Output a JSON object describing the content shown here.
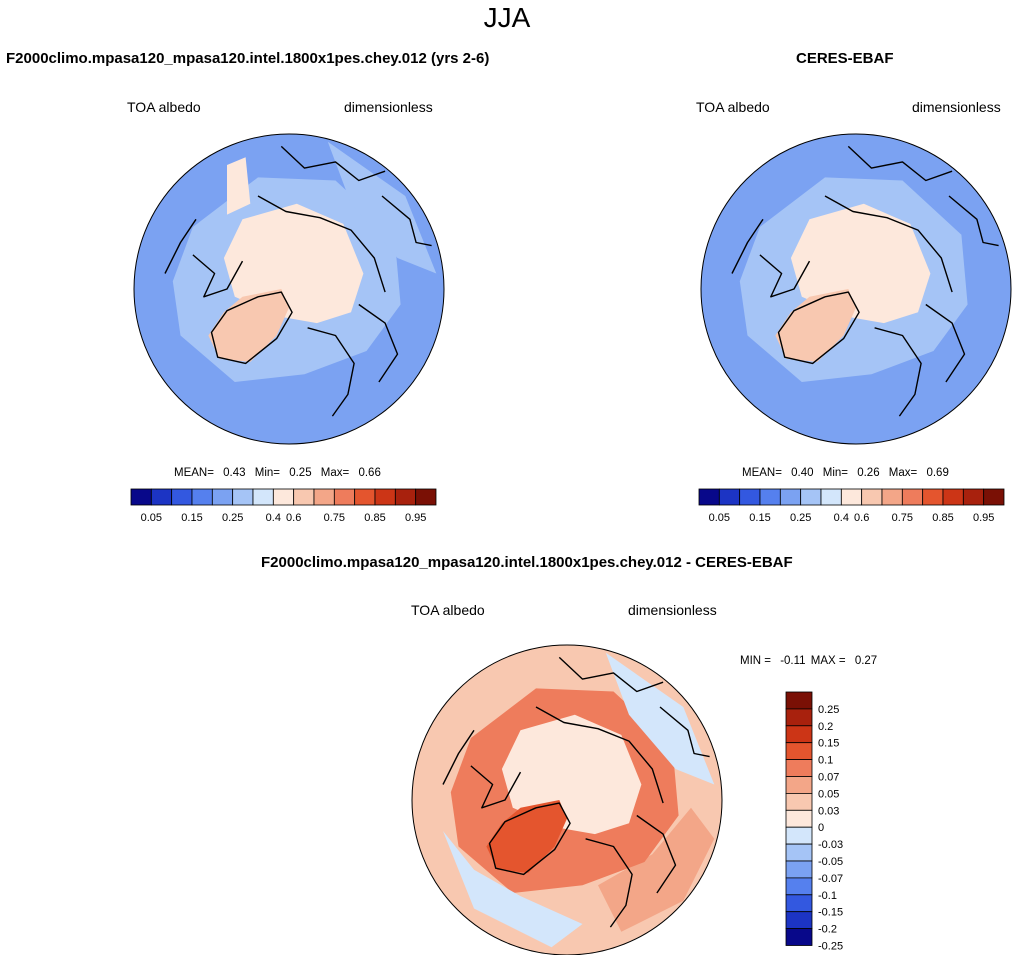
{
  "figure": {
    "season": "JJA"
  },
  "panels": [
    {
      "title": "F2000climo.mpasa120_mpasa120.intel.1800x1pes.chey.012 (yrs 2-6)",
      "left_label": "TOA albedo",
      "right_label": "dimensionless",
      "stats": {
        "mean_label": "MEAN=",
        "mean": "0.43",
        "min_label": "Min=",
        "min": "0.25",
        "max_label": "Max=",
        "max": "0.66"
      }
    },
    {
      "title": "CERES-EBAF",
      "left_label": "TOA albedo",
      "right_label": "dimensionless",
      "stats": {
        "mean_label": "MEAN=",
        "mean": "0.40",
        "min_label": "Min=",
        "min": "0.26",
        "max_label": "Max=",
        "max": "0.69"
      }
    },
    {
      "title": "F2000climo.mpasa120_mpasa120.intel.1800x1pes.chey.012 - CERES-EBAF",
      "left_label": "TOA albedo",
      "right_label": "dimensionless",
      "stats": {
        "min_label": "MIN =",
        "min": "-0.11",
        "max_label": "MAX =",
        "max": "0.27"
      }
    }
  ],
  "chart_data": [
    {
      "type": "heatmap",
      "projection": "north-polar-stereographic",
      "title": "F2000climo.mpasa120_mpasa120.intel.1800x1pes.chey.012 (yrs 2-6)",
      "variable": "TOA albedo",
      "units": "dimensionless",
      "mean": 0.43,
      "min": 0.25,
      "max": 0.66,
      "colorbar": {
        "orientation": "horizontal",
        "levels": [
          0.05,
          0.1,
          0.15,
          0.2,
          0.25,
          0.3,
          0.4,
          0.5,
          0.6,
          0.7,
          0.75,
          0.8,
          0.85,
          0.9,
          0.95
        ],
        "tick_labels": [
          "0.05",
          "0.15",
          "0.25",
          "0.4",
          "0.6",
          "0.75",
          "0.85",
          "0.95"
        ],
        "colors": [
          "#08088a",
          "#1c34c4",
          "#3358e0",
          "#5580ee",
          "#7ba2f2",
          "#a5c4f6",
          "#d3e6fb",
          "#fde8dc",
          "#f8c8b0",
          "#f3a688",
          "#ee7c5c",
          "#e4552e",
          "#cc3516",
          "#a8210d",
          "#7a1005"
        ]
      }
    },
    {
      "type": "heatmap",
      "projection": "north-polar-stereographic",
      "title": "CERES-EBAF",
      "variable": "TOA albedo",
      "units": "dimensionless",
      "mean": 0.4,
      "min": 0.26,
      "max": 0.69,
      "colorbar": {
        "orientation": "horizontal",
        "levels": [
          0.05,
          0.1,
          0.15,
          0.2,
          0.25,
          0.3,
          0.4,
          0.5,
          0.6,
          0.7,
          0.75,
          0.8,
          0.85,
          0.9,
          0.95
        ],
        "tick_labels": [
          "0.05",
          "0.15",
          "0.25",
          "0.4",
          "0.6",
          "0.75",
          "0.85",
          "0.95"
        ],
        "colors": [
          "#08088a",
          "#1c34c4",
          "#3358e0",
          "#5580ee",
          "#7ba2f2",
          "#a5c4f6",
          "#d3e6fb",
          "#fde8dc",
          "#f8c8b0",
          "#f3a688",
          "#ee7c5c",
          "#e4552e",
          "#cc3516",
          "#a8210d",
          "#7a1005"
        ]
      }
    },
    {
      "type": "heatmap",
      "projection": "north-polar-stereographic",
      "title": "F2000climo.mpasa120_mpasa120.intel.1800x1pes.chey.012 - CERES-EBAF",
      "variable": "TOA albedo",
      "units": "dimensionless",
      "min": -0.11,
      "max": 0.27,
      "colorbar": {
        "orientation": "vertical",
        "levels": [
          0.25,
          0.2,
          0.15,
          0.1,
          0.07,
          0.05,
          0.03,
          0,
          -0.03,
          -0.05,
          -0.07,
          -0.1,
          -0.15,
          -0.2,
          -0.25
        ],
        "tick_labels": [
          "0.25",
          "0.2",
          "0.15",
          "0.1",
          "0.07",
          "0.05",
          "0.03",
          "0",
          "-0.03",
          "-0.05",
          "-0.07",
          "-0.1",
          "-0.15",
          "-0.2",
          "-0.25"
        ],
        "colors": [
          "#7a1005",
          "#a8210d",
          "#cc3516",
          "#e4552e",
          "#ee7c5c",
          "#f3a688",
          "#f8c8b0",
          "#fde8dc",
          "#d3e6fb",
          "#a5c4f6",
          "#7ba2f2",
          "#5580ee",
          "#3358e0",
          "#1c34c4",
          "#08088a"
        ]
      }
    }
  ]
}
